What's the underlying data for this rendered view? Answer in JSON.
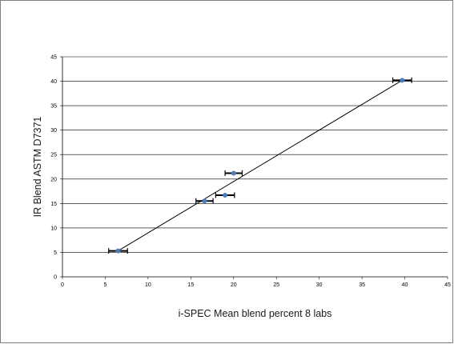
{
  "chart_data": {
    "type": "scatter",
    "title": "",
    "xlabel": "i-SPEC Mean blend percent 8 labs",
    "ylabel": "IR Blend ASTM D7371",
    "xlim": [
      0,
      45
    ],
    "ylim": [
      0,
      45
    ],
    "x_ticks": [
      0,
      5,
      10,
      15,
      20,
      25,
      30,
      35,
      40,
      45
    ],
    "y_ticks": [
      0,
      5,
      10,
      15,
      20,
      25,
      30,
      35,
      40,
      45
    ],
    "grid": "horizontal",
    "legend": "none",
    "series": [
      {
        "points": [
          {
            "x": 6.5,
            "y": 5.3,
            "x_err": 1.1
          },
          {
            "x": 16.6,
            "y": 15.5,
            "x_err": 1.0
          },
          {
            "x": 19.0,
            "y": 16.7,
            "x_err": 1.1
          },
          {
            "x": 20.0,
            "y": 21.2,
            "x_err": 1.0
          },
          {
            "x": 39.7,
            "y": 40.2,
            "x_err": 1.1
          }
        ]
      }
    ],
    "trendline": {
      "type": "linear",
      "x_range": [
        6.5,
        39.7
      ],
      "y_range": [
        5.3,
        40.2
      ]
    },
    "colors": {
      "marker": "#4a7ebb",
      "line": "#000000",
      "grid": "#000000",
      "error_bar": "#000000"
    }
  }
}
